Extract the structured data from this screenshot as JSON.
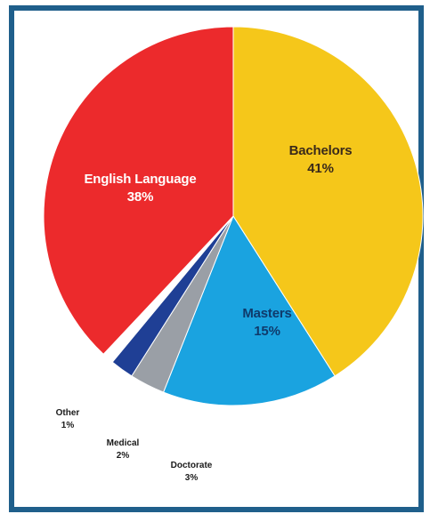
{
  "chart_data": {
    "type": "pie",
    "slices": [
      {
        "name": "Bachelors",
        "value": 41,
        "label": "41%",
        "color": "#f5c71a"
      },
      {
        "name": "Masters",
        "value": 15,
        "label": "15%",
        "color": "#1aa3e0"
      },
      {
        "name": "Doctorate",
        "value": 3,
        "label": "3%",
        "color": "#9a9fa6"
      },
      {
        "name": "Medical",
        "value": 2,
        "label": "2%",
        "color": "#1f3f95"
      },
      {
        "name": "Other",
        "value": 1,
        "label": "1%",
        "color": "#ffffff"
      },
      {
        "name": "English Language",
        "value": 38,
        "label": "38%",
        "color": "#ec2a2c"
      }
    ],
    "start": "12 o'clock",
    "direction": "clockwise"
  },
  "colors": {
    "frame": "#1f5f8b",
    "background": "#ffffff"
  }
}
